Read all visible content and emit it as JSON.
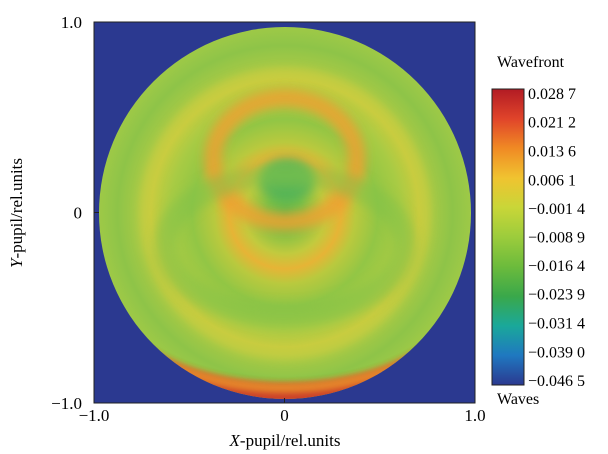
{
  "chart_data": {
    "type": "heatmap",
    "title": "",
    "xlabel": {
      "italic": "X",
      "rest": "-pupil/rel.units"
    },
    "ylabel": {
      "italic": "Y",
      "rest": "-pupil/rel.units"
    },
    "xlim": [
      -1.0,
      1.0
    ],
    "ylim": [
      -1.0,
      1.0
    ],
    "xticks": [
      {
        "value": -1.0,
        "label": "−1.0"
      },
      {
        "value": 0,
        "label": "0"
      },
      {
        "value": 1.0,
        "label": "1.0"
      }
    ],
    "yticks": [
      {
        "value": 1.0,
        "label": "1.0"
      },
      {
        "value": 0,
        "label": "0"
      },
      {
        "value": -1.0,
        "label": "−1.0"
      }
    ],
    "grid": false,
    "colorbar": {
      "title": "Wavefront",
      "unit": "Waves",
      "ticks": [
        {
          "value": 0.0287,
          "label": "0.028 7"
        },
        {
          "value": 0.0212,
          "label": "0.021 2"
        },
        {
          "value": 0.0136,
          "label": "0.013 6"
        },
        {
          "value": 0.0061,
          "label": "0.006 1"
        },
        {
          "value": -0.0014,
          "label": "−0.001 4"
        },
        {
          "value": -0.0089,
          "label": "−0.008 9"
        },
        {
          "value": -0.0164,
          "label": "−0.016 4"
        },
        {
          "value": -0.0239,
          "label": "−0.023 9"
        },
        {
          "value": -0.0314,
          "label": "−0.031 4"
        },
        {
          "value": -0.039,
          "label": "−0.039 0"
        },
        {
          "value": -0.0465,
          "label": "−0.046 5"
        }
      ],
      "range": [
        -0.0465,
        0.0287
      ],
      "colors": [
        "#2b3990",
        "#1f78c0",
        "#1aa89a",
        "#3aa84a",
        "#6cbb3c",
        "#9ccc3c",
        "#c9d638",
        "#f0c330",
        "#f08a24",
        "#e0442a",
        "#b21b24"
      ]
    },
    "background_color": "#2b3990",
    "pupil_radius": 1.0,
    "features": [
      {
        "name": "center",
        "r": 0.0,
        "value": -0.012
      },
      {
        "name": "inner-ring",
        "r": 0.25,
        "value": 0.012
      },
      {
        "name": "mid-zone",
        "r": 0.5,
        "value": 0.001
      },
      {
        "name": "outer-ring",
        "r": 0.73,
        "value": 0.006
      },
      {
        "name": "bottom-edge-ring",
        "r": 0.9,
        "value": 0.024
      }
    ]
  }
}
